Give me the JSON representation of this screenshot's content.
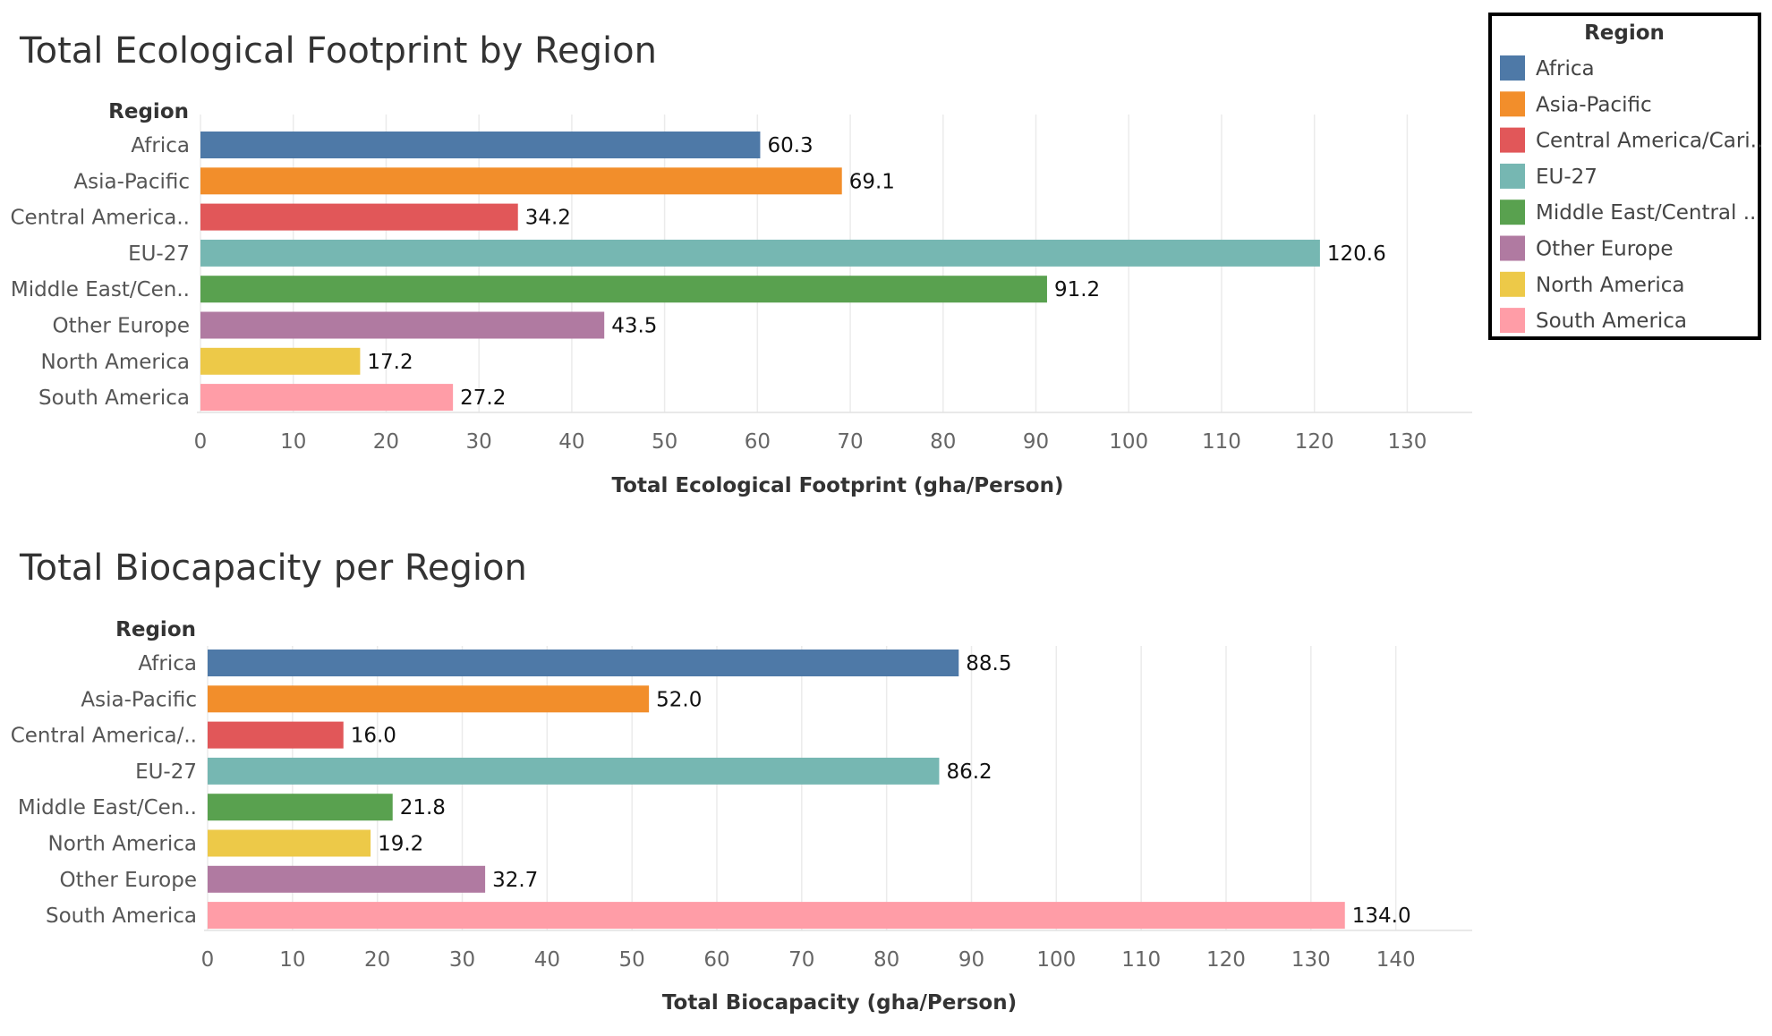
{
  "legend": {
    "title": "Region",
    "items": [
      {
        "label": "Africa",
        "color": "#4e79a7"
      },
      {
        "label": "Asia-Pacific",
        "color": "#f28e2b"
      },
      {
        "label": "Central America/Cari..",
        "color": "#e15759"
      },
      {
        "label": "EU-27",
        "color": "#76b7b2"
      },
      {
        "label": "Middle East/Central ..",
        "color": "#59a14f"
      },
      {
        "label": "Other Europe",
        "color": "#b07aa1"
      },
      {
        "label": "North America",
        "color": "#edc948"
      },
      {
        "label": "South America",
        "color": "#ff9da7"
      }
    ]
  },
  "chart_data": [
    {
      "type": "bar",
      "orientation": "horizontal",
      "title": "Total Ecological Footprint by Region",
      "row_header": "Region",
      "xlabel": "Total Ecological Footprint (gha/Person)",
      "xlim": [
        0,
        137
      ],
      "xticks": [
        0,
        10,
        20,
        30,
        40,
        50,
        60,
        70,
        80,
        90,
        100,
        110,
        120,
        130
      ],
      "grid": true,
      "categories": [
        "Africa",
        "Asia-Pacific",
        "Central America..",
        "EU-27",
        "Middle East/Cen..",
        "Other Europe",
        "North America",
        "South America"
      ],
      "values": [
        60.3,
        69.1,
        34.2,
        120.6,
        91.2,
        43.5,
        17.2,
        27.2
      ],
      "value_labels": [
        "60.3",
        "69.1",
        "34.2",
        "120.6",
        "91.2",
        "43.5",
        "17.2",
        "27.2"
      ],
      "colors": [
        "#4e79a7",
        "#f28e2b",
        "#e15759",
        "#76b7b2",
        "#59a14f",
        "#b07aa1",
        "#edc948",
        "#ff9da7"
      ]
    },
    {
      "type": "bar",
      "orientation": "horizontal",
      "title": "Total Biocapacity per Region",
      "row_header": "Region",
      "xlabel": "Total Biocapacity (gha/Person)",
      "xlim": [
        0,
        149
      ],
      "xticks": [
        0,
        10,
        20,
        30,
        40,
        50,
        60,
        70,
        80,
        90,
        100,
        110,
        120,
        130,
        140
      ],
      "grid": true,
      "categories": [
        "Africa",
        "Asia-Pacific",
        "Central America/..",
        "EU-27",
        "Middle East/Cen..",
        "North America",
        "Other Europe",
        "South America"
      ],
      "values": [
        88.5,
        52.0,
        16.0,
        86.2,
        21.8,
        19.2,
        32.7,
        134.0
      ],
      "value_labels": [
        "88.5",
        "52.0",
        "16.0",
        "86.2",
        "21.8",
        "19.2",
        "32.7",
        "134.0"
      ],
      "colors": [
        "#4e79a7",
        "#f28e2b",
        "#e15759",
        "#76b7b2",
        "#59a14f",
        "#edc948",
        "#b07aa1",
        "#ff9da7"
      ]
    }
  ]
}
